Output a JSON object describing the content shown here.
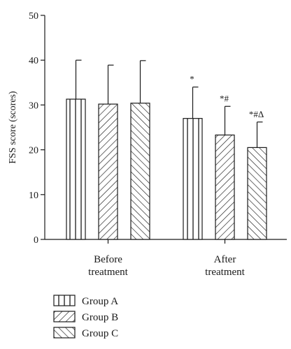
{
  "chart_data": {
    "type": "bar",
    "ylabel": "FSS score (scores)",
    "ylim": [
      0,
      50
    ],
    "yticks": [
      0,
      10,
      20,
      30,
      40,
      50
    ],
    "categories": [
      [
        "Before",
        "treatment"
      ],
      [
        "After",
        "treatment"
      ]
    ],
    "series": [
      {
        "name": "Group A",
        "pattern": "vertical",
        "values": [
          31.3,
          27.0
        ],
        "errors": [
          8.7,
          7.0
        ]
      },
      {
        "name": "Group B",
        "pattern": "forward-diagonal",
        "values": [
          30.2,
          23.3
        ],
        "errors": [
          8.7,
          6.4
        ]
      },
      {
        "name": "Group C",
        "pattern": "backward-diagonal",
        "values": [
          30.4,
          20.5
        ],
        "errors": [
          9.5,
          5.7
        ]
      }
    ],
    "annotations": [
      {
        "category": 1,
        "series": 0,
        "text": "*"
      },
      {
        "category": 1,
        "series": 1,
        "text": "*#"
      },
      {
        "category": 1,
        "series": 2,
        "text": "*#Δ"
      }
    ],
    "legend_position": "bottom-left",
    "colors": {
      "ink": "#1a1a1a",
      "fill": "#ffffff"
    }
  }
}
